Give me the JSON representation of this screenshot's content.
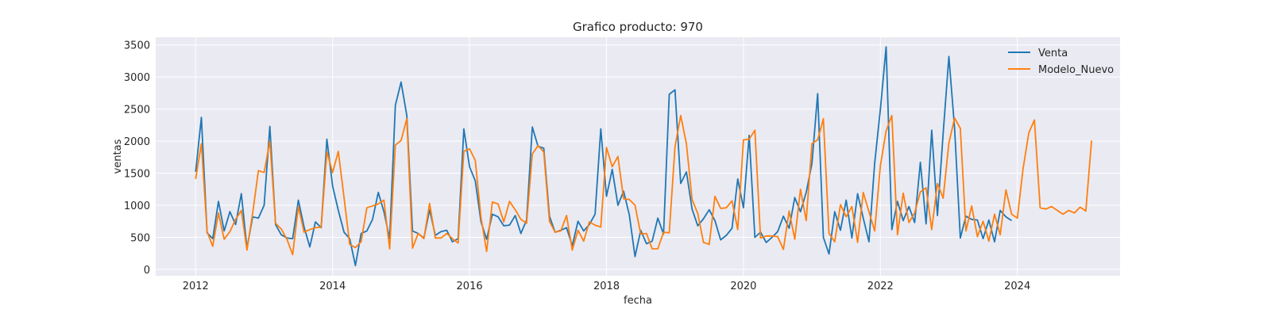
{
  "chart_data": {
    "type": "line",
    "title": "Grafico producto: 970",
    "xlabel": "fecha",
    "ylabel": "ventas",
    "x_ticks": [
      "2012",
      "2014",
      "2016",
      "2018",
      "2020",
      "2022",
      "2024"
    ],
    "y_ticks": [
      "0",
      "500",
      "1000",
      "1500",
      "2000",
      "2500",
      "3000",
      "3500"
    ],
    "xlim": [
      "2011-06",
      "2025-07"
    ],
    "ylim": [
      -100,
      3620
    ],
    "grid": true,
    "legend_position": "top-right",
    "start": "2012-01",
    "frequency": "monthly",
    "series": [
      {
        "name": "Venta",
        "color": "#1f77b4",
        "values": [
          1520,
          2370,
          570,
          480,
          1060,
          600,
          900,
          700,
          1180,
          330,
          820,
          800,
          1000,
          2230,
          700,
          540,
          490,
          480,
          1080,
          660,
          350,
          740,
          650,
          2030,
          1300,
          920,
          580,
          480,
          60,
          560,
          600,
          780,
          1200,
          900,
          480,
          2560,
          2920,
          2400,
          600,
          560,
          490,
          930,
          530,
          590,
          610,
          430,
          480,
          2190,
          1600,
          1380,
          740,
          470,
          860,
          820,
          680,
          690,
          840,
          560,
          770,
          2220,
          1920,
          1890,
          830,
          580,
          610,
          650,
          370,
          750,
          600,
          700,
          860,
          2190,
          1140,
          1560,
          1000,
          1220,
          850,
          200,
          610,
          400,
          440,
          800,
          550,
          2730,
          2800,
          1340,
          1520,
          940,
          680,
          790,
          930,
          760,
          460,
          530,
          640,
          1410,
          960,
          2090,
          500,
          580,
          420,
          500,
          590,
          830,
          640,
          1120,
          900,
          1200,
          1650,
          2740,
          500,
          240,
          900,
          610,
          1080,
          490,
          1180,
          800,
          430,
          1660,
          2500,
          3470,
          620,
          1060,
          760,
          980,
          730,
          1670,
          710,
          2170,
          840,
          2120,
          3320,
          2200,
          490,
          830,
          780,
          770,
          480,
          770,
          430,
          920,
          820,
          760
        ],
        "_precision_note": "n/a"
      },
      {
        "name": "Modelo_Nuevo",
        "color": "#ff7f0e",
        "values": [
          1410,
          1960,
          590,
          360,
          880,
          470,
          590,
          780,
          920,
          300,
          880,
          1540,
          1510,
          2000,
          720,
          630,
          470,
          230,
          980,
          580,
          620,
          650,
          660,
          1830,
          1510,
          1840,
          1120,
          390,
          340,
          430,
          960,
          990,
          1020,
          1080,
          320,
          1940,
          2010,
          2350,
          330,
          560,
          480,
          1030,
          490,
          490,
          560,
          480,
          410,
          1840,
          1880,
          1700,
          810,
          280,
          1050,
          1020,
          740,
          1060,
          930,
          780,
          720,
          1800,
          1930,
          1830,
          750,
          580,
          600,
          840,
          300,
          610,
          440,
          740,
          690,
          660,
          1900,
          1600,
          1760,
          1100,
          1090,
          1000,
          550,
          560,
          320,
          320,
          580,
          570,
          1910,
          2400,
          1960,
          1090,
          870,
          420,
          390,
          1140,
          950,
          960,
          1070,
          620,
          2020,
          2030,
          2170,
          490,
          520,
          520,
          510,
          310,
          910,
          470,
          1250,
          760,
          1960,
          2020,
          2350,
          560,
          430,
          1010,
          820,
          980,
          420,
          1200,
          900,
          600,
          1620,
          2160,
          2400,
          540,
          1190,
          730,
          880,
          1210,
          1270,
          620,
          1340,
          1110,
          1970,
          2360,
          2200,
          600,
          990,
          510,
          750,
          440,
          860,
          540,
          1240,
          860,
          800,
          1570,
          2130,
          2330,
          960,
          940,
          980,
          920,
          860,
          920,
          880,
          970,
          910,
          2010
        ]
      }
    ]
  }
}
